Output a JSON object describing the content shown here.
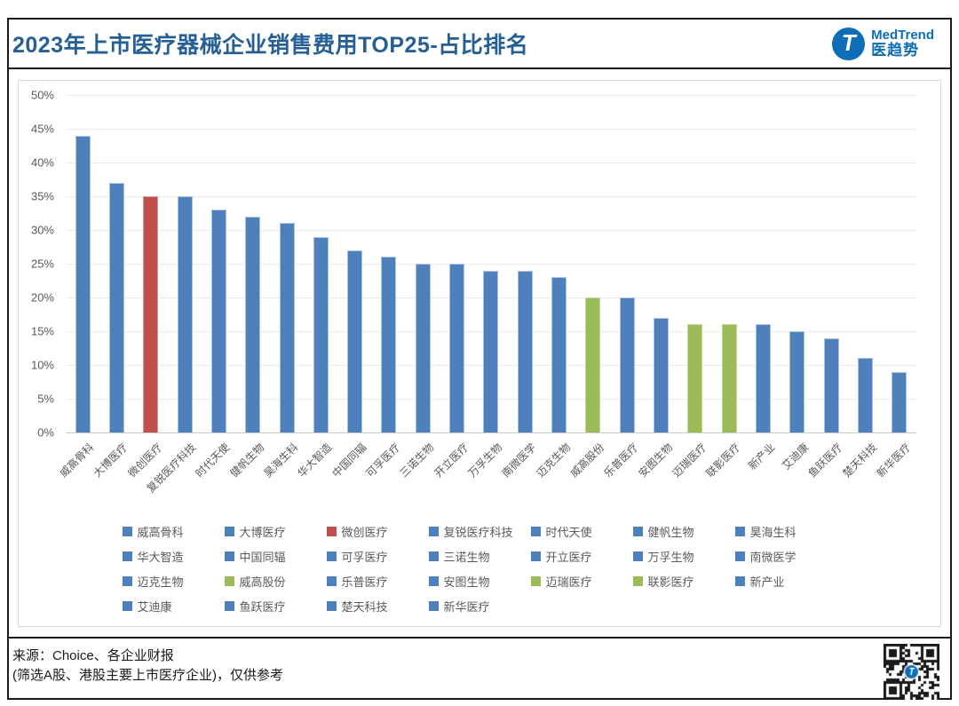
{
  "header": {
    "title": "2023年上市医疗器械企业销售费用TOP25-占比排名",
    "logo": {
      "mark": "T",
      "brand_en": "MedTrend",
      "brand_cn": "医趋势"
    }
  },
  "chart_data": {
    "type": "bar",
    "title": "2023年上市医疗器械企业销售费用TOP25-占比排名",
    "xlabel": "",
    "ylabel": "",
    "ylim": [
      0,
      50
    ],
    "ytick_step": 5,
    "ytick_format": "percent",
    "grid": true,
    "legend_position": "bottom",
    "legend_columns": 7,
    "categories": [
      "威高骨科",
      "大博医疗",
      "微创医疗",
      "复锐医疗科技",
      "时代天使",
      "健帆生物",
      "昊海生科",
      "华大智造",
      "中国同辐",
      "可孚医疗",
      "三诺生物",
      "开立医疗",
      "万孚生物",
      "南微医学",
      "迈克生物",
      "威高股份",
      "乐普医疗",
      "安图生物",
      "迈瑞医疗",
      "联影医疗",
      "新产业",
      "艾迪康",
      "鱼跃医疗",
      "楚天科技",
      "新华医疗"
    ],
    "values": [
      44,
      37,
      35,
      35,
      33,
      32,
      31,
      29,
      27,
      26,
      25,
      25,
      24,
      24,
      23,
      20,
      20,
      17,
      16,
      16,
      16,
      15,
      14,
      11,
      9
    ],
    "bar_colors": [
      "blue",
      "blue",
      "red",
      "blue",
      "blue",
      "blue",
      "blue",
      "blue",
      "blue",
      "blue",
      "blue",
      "blue",
      "blue",
      "blue",
      "blue",
      "green",
      "blue",
      "blue",
      "green",
      "green",
      "blue",
      "blue",
      "blue",
      "blue",
      "blue"
    ],
    "colors": {
      "blue": "#4e80bc",
      "red": "#c0504d",
      "green": "#9bbb59"
    },
    "bar_border_colors": {
      "blue": "#a8c2e0",
      "red": "#d99694",
      "green": "#c2d69b"
    }
  },
  "footer": {
    "source_line1": "来源：Choice、各企业财报",
    "source_line2": "(筛选A股、港股主要上市医疗企业)，仅供参考"
  }
}
